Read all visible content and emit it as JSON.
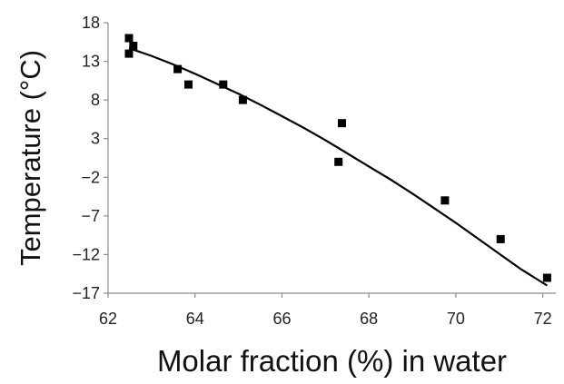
{
  "chart_data": {
    "type": "scatter",
    "title": "",
    "xlabel": "Molar fraction (%) in water",
    "ylabel": "Temperature (°C)",
    "xlim": [
      62,
      72.3
    ],
    "ylim": [
      -17,
      18
    ],
    "xticks": [
      62,
      64,
      66,
      68,
      70,
      72
    ],
    "yticks": [
      18,
      13,
      8,
      3,
      -2,
      -7,
      -12,
      -17
    ],
    "grid": false,
    "legend": "none",
    "series": [
      {
        "marker": "square",
        "color": "#000000",
        "x": [
          62.48,
          62.48,
          62.58,
          63.6,
          63.85,
          64.65,
          65.1,
          67.3,
          67.38,
          69.75,
          71.03,
          72.1
        ],
        "y": [
          16,
          14,
          15,
          12,
          10,
          10,
          8,
          0,
          5,
          -5,
          -10,
          -15
        ]
      }
    ],
    "trendline": {
      "type": "polynomial",
      "color": "#000000",
      "x": [
        62.48,
        63.0,
        63.5,
        64.0,
        64.5,
        65.0,
        65.5,
        66.0,
        66.5,
        67.0,
        67.5,
        68.0,
        68.5,
        69.0,
        69.5,
        70.0,
        70.5,
        71.0,
        71.5,
        72.1
      ],
      "y": [
        14.7,
        13.7,
        12.6,
        11.4,
        10.1,
        8.8,
        7.4,
        5.9,
        4.4,
        2.8,
        1.1,
        -0.6,
        -2.3,
        -4.1,
        -6.0,
        -7.9,
        -9.9,
        -11.9,
        -13.9,
        -16.0
      ]
    }
  }
}
